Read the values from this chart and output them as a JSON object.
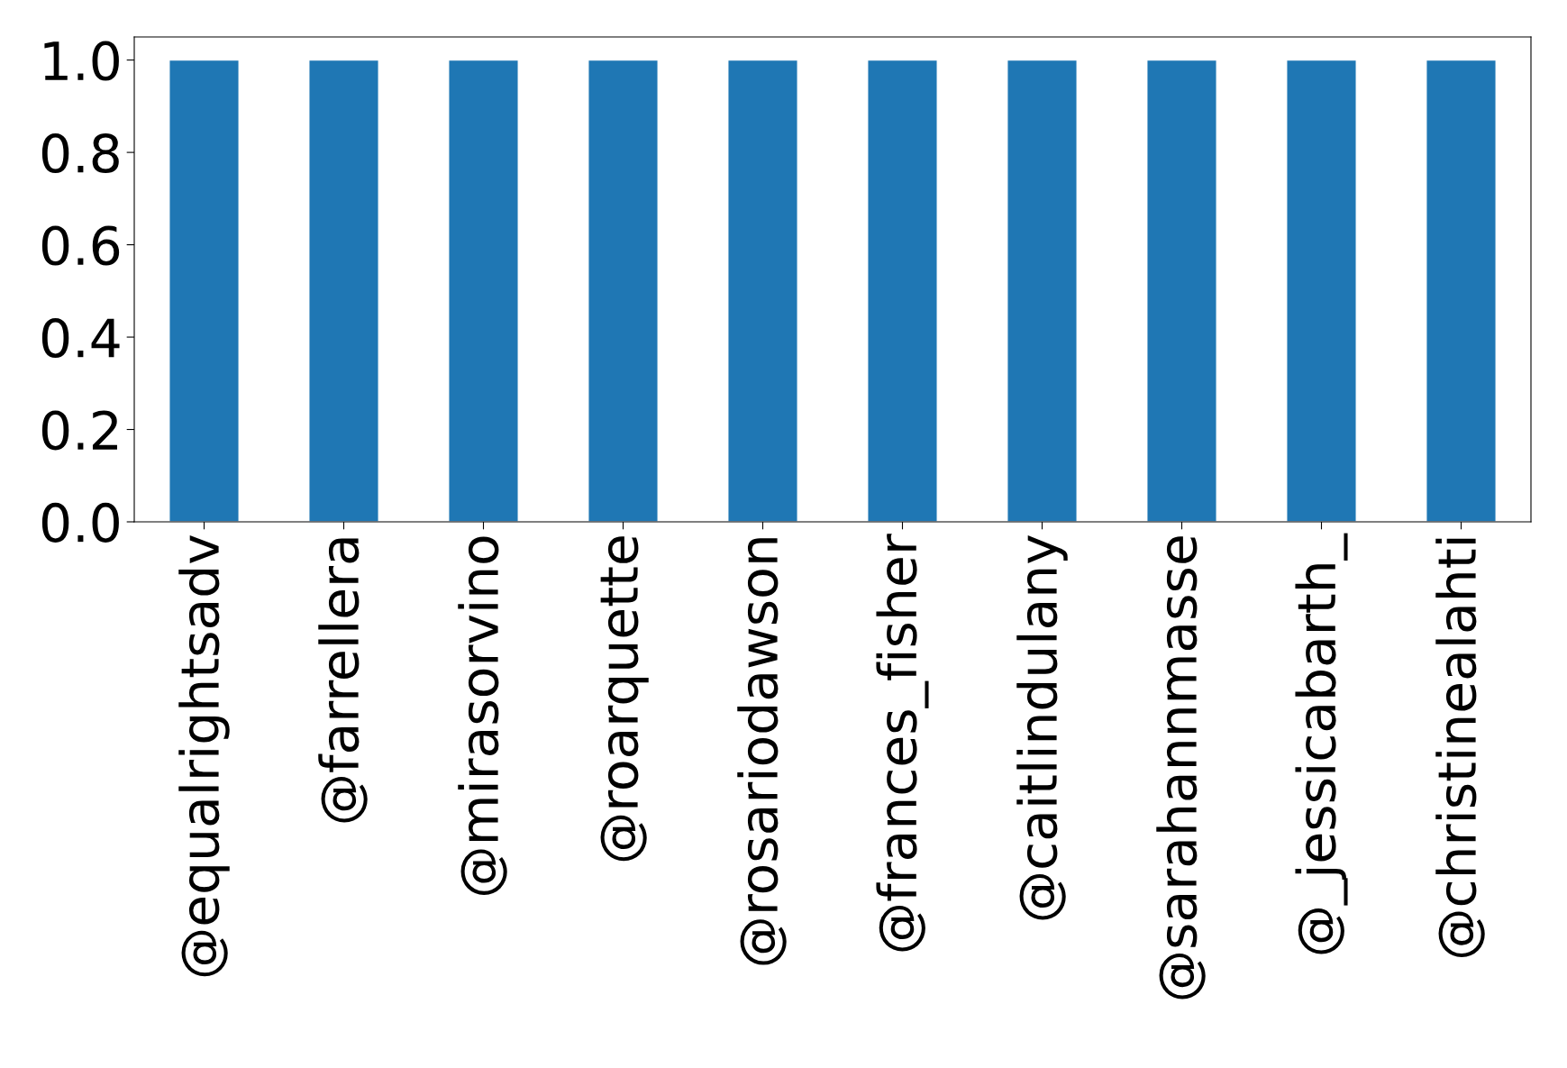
{
  "chart_data": {
    "type": "bar",
    "categories": [
      "@equalrightsadv",
      "@farrellera",
      "@mirasorvino",
      "@roarquette",
      "@rosariodawson",
      "@frances_fisher",
      "@caitlindulany",
      "@sarahannmasse",
      "@_jessicabarth_",
      "@christinealahti"
    ],
    "values": [
      1,
      1,
      1,
      1,
      1,
      1,
      1,
      1,
      1,
      1
    ],
    "color": "#1f77b4",
    "ylim": [
      0,
      1.05
    ],
    "yticks": [
      {
        "value": 0,
        "label": "0.0"
      },
      {
        "value": 0.2,
        "label": "0.2"
      },
      {
        "value": 0.4,
        "label": "0.4"
      },
      {
        "value": 0.6,
        "label": "0.6"
      },
      {
        "value": 0.8,
        "label": "0.8"
      },
      {
        "value": 1,
        "label": "1.0"
      }
    ],
    "grid": false
  }
}
